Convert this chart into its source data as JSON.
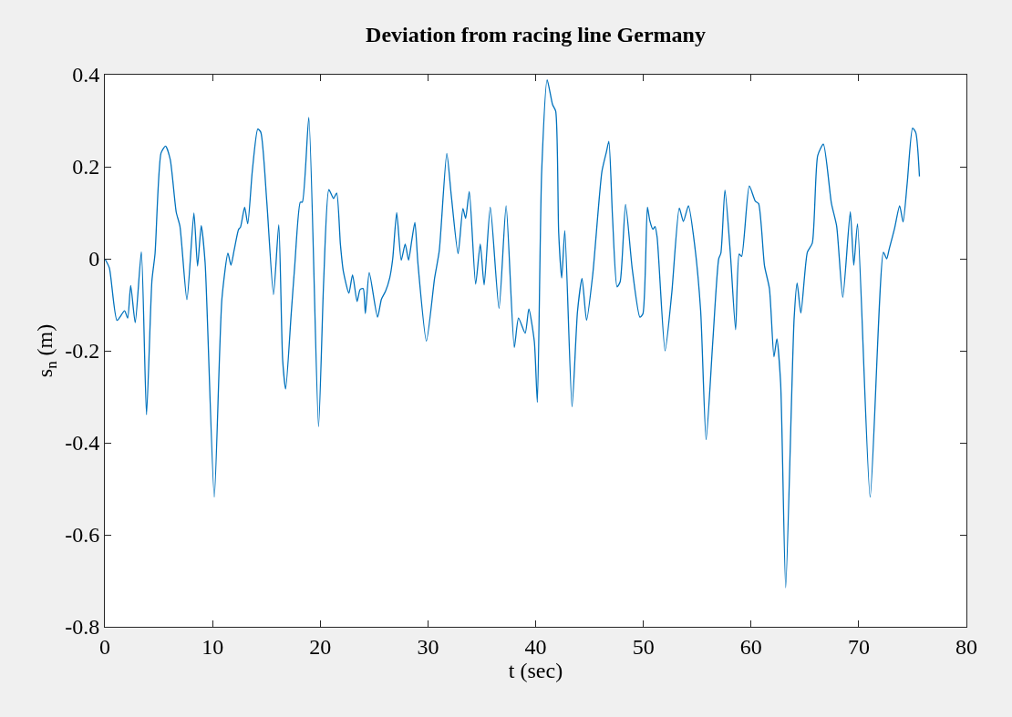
{
  "chart_data": {
    "type": "line",
    "title": "Deviation from racing line Germany",
    "xlabel": "t (sec)",
    "ylabel": "s$_{n}$ (m)",
    "xlim": [
      0,
      80
    ],
    "xticks": [
      0,
      10,
      20,
      30,
      40,
      50,
      60,
      70,
      80
    ],
    "ylim": [
      -0.8,
      0.4
    ],
    "yticks": [
      {
        "value": -0.8,
        "label": "-0.8"
      },
      {
        "value": -0.6,
        "label": "-0.6"
      },
      {
        "value": -0.4,
        "label": "-0.4"
      },
      {
        "value": -0.2,
        "label": "-0.2"
      },
      0,
      0.2,
      0.4
    ],
    "series": [
      {
        "color": "#0072bd",
        "x": [
          0,
          0.42,
          1.13,
          1.83,
          2.12,
          2.4,
          2.82,
          3.39,
          3.87,
          4.37,
          4.66,
          5.22,
          5.64,
          6.07,
          6.63,
          6.97,
          7.62,
          8.27,
          8.61,
          8.95,
          9.31,
          10.16,
          10.87,
          11.43,
          11.71,
          12.0,
          12.42,
          12.6,
          12.98,
          13.27,
          13.69,
          14.2,
          14.48,
          15.04,
          15.66,
          16.15,
          16.51,
          16.79,
          17.3,
          17.63,
          18.15,
          18.34,
          18.94,
          19.84,
          20.32,
          20.8,
          21.24,
          21.53,
          21.87,
          22.15,
          22.66,
          23.0,
          23.42,
          23.7,
          23.99,
          24.19,
          24.55,
          25.32,
          25.68,
          26.06,
          26.45,
          26.73,
          27.1,
          27.52,
          27.89,
          28.2,
          28.5,
          28.79,
          29.07,
          29.86,
          30.62,
          31.05,
          31.75,
          32.17,
          32.8,
          33.25,
          33.5,
          33.84,
          34.43,
          34.86,
          35.22,
          35.79,
          36.6,
          37.26,
          38.02,
          38.41,
          39.03,
          39.37,
          39.88,
          40.16,
          40.56,
          41.07,
          41.57,
          41.86,
          42.14,
          42.42,
          42.71,
          43.38,
          43.89,
          44.31,
          44.73,
          45.3,
          46.15,
          46.57,
          46.8,
          47.14,
          47.56,
          47.85,
          48.35,
          48.97,
          49.68,
          49.96,
          50.38,
          50.6,
          50.89,
          51.08,
          51.28,
          52.02,
          52.64,
          53.34,
          53.72,
          54.19,
          54.75,
          55.32,
          55.83,
          56.45,
          57.0,
          57.2,
          57.58,
          58.08,
          58.57,
          58.9,
          59.13,
          59.84,
          60.4,
          60.7,
          61.25,
          61.71,
          62.13,
          62.4,
          62.75,
          63.22,
          64.0,
          64.28,
          64.63,
          65.23,
          65.69,
          66.19,
          66.72,
          67.46,
          67.95,
          68.52,
          69.22,
          69.54,
          69.89,
          71.06,
          72.29,
          72.6,
          72.82,
          73.33,
          73.8,
          74.12,
          74.51,
          75.0,
          75.3,
          75.64
        ],
        "values": [
          0,
          -0.02,
          -0.134,
          -0.113,
          -0.129,
          -0.058,
          -0.139,
          0.015,
          -0.339,
          -0.048,
          0.011,
          0.23,
          0.245,
          0.216,
          0.101,
          0.071,
          -0.089,
          0.099,
          -0.016,
          0.072,
          -0.008,
          -0.518,
          -0.087,
          0.012,
          -0.014,
          0.018,
          0.064,
          0.069,
          0.112,
          0.076,
          0.19,
          0.282,
          0.275,
          0.123,
          -0.078,
          0.074,
          -0.22,
          -0.283,
          -0.121,
          -0.016,
          0.123,
          0.123,
          0.307,
          -0.365,
          -0.048,
          0.15,
          0.131,
          0.143,
          0.032,
          -0.028,
          -0.075,
          -0.035,
          -0.093,
          -0.067,
          -0.065,
          -0.119,
          -0.03,
          -0.127,
          -0.088,
          -0.071,
          -0.042,
          0.0,
          0.1,
          -0.003,
          0.032,
          -0.003,
          0.04,
          0.079,
          -0.01,
          -0.179,
          -0.042,
          0.017,
          0.229,
          0.137,
          0.011,
          0.109,
          0.088,
          0.146,
          -0.055,
          0.032,
          -0.057,
          0.112,
          -0.108,
          0.115,
          -0.193,
          -0.129,
          -0.162,
          -0.109,
          -0.18,
          -0.312,
          0.189,
          0.389,
          0.335,
          0.321,
          0.057,
          -0.042,
          0.061,
          -0.322,
          -0.114,
          -0.043,
          -0.134,
          -0.035,
          0.189,
          0.232,
          0.255,
          0.09,
          -0.061,
          -0.05,
          0.118,
          -0.022,
          -0.127,
          -0.12,
          0.112,
          0.083,
          0.064,
          0.07,
          0.047,
          -0.2,
          -0.075,
          0.11,
          0.081,
          0.115,
          0.033,
          -0.112,
          -0.393,
          -0.18,
          0.0,
          0.012,
          0.149,
          0.012,
          -0.154,
          0.01,
          0.005,
          0.158,
          0.125,
          0.12,
          -0.015,
          -0.065,
          -0.213,
          -0.174,
          -0.27,
          -0.715,
          -0.131,
          -0.053,
          -0.118,
          0.014,
          0.034,
          0.224,
          0.249,
          0.121,
          0.071,
          -0.084,
          0.102,
          -0.014,
          0.076,
          -0.518,
          0.014,
          0.0,
          0.02,
          0.066,
          0.115,
          0.08,
          0.166,
          0.284,
          0.274,
          0.179
        ]
      }
    ]
  }
}
